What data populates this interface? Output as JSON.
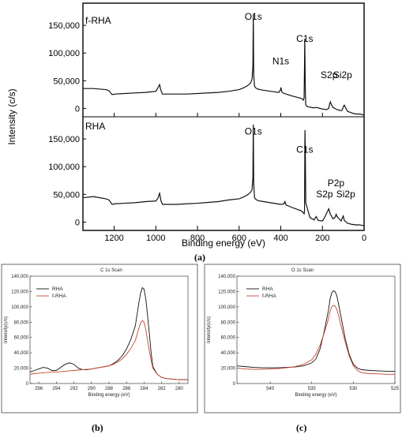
{
  "colors": {
    "rha": "#111111",
    "frha": "#c8452f",
    "axis": "#000000",
    "frame": "#444444"
  },
  "panel_a": {
    "caption": "(a)",
    "chart_data": {
      "type": "line",
      "title": "",
      "xlabel": "Binding energy (eV)",
      "ylabel": "Intensity (c/s)",
      "x_reversed": true,
      "xlim": [
        1350,
        0
      ],
      "x_ticks": [
        "1200",
        "1000",
        "800",
        "600",
        "400",
        "200",
        "0"
      ],
      "y_ticks": [
        "0",
        "50,000",
        "100,000",
        "150,000"
      ],
      "ylim": [
        -15000,
        190000
      ],
      "subplots": [
        {
          "name": "f-RHA",
          "annotations": [
            {
              "text": "O1s",
              "x": 532,
              "y": 160000
            },
            {
              "text": "N1s",
              "x": 400,
              "y": 80000
            },
            {
              "text": "C1s",
              "x": 285,
              "y": 120000
            },
            {
              "text": "S2p",
              "x": 168,
              "y": 55000
            },
            {
              "text": "Si2p",
              "x": 103,
              "y": 55000
            }
          ],
          "x": [
            1350,
            1300,
            1240,
            1225,
            1210,
            1195,
            1150,
            1100,
            1050,
            1000,
            990,
            982,
            975,
            968,
            950,
            900,
            850,
            800,
            700,
            650,
            600,
            580,
            560,
            545,
            538,
            534,
            532,
            530,
            526,
            520,
            510,
            500,
            450,
            410,
            402,
            399,
            396,
            390,
            350,
            300,
            292,
            288,
            286,
            285,
            284,
            282,
            280,
            270,
            240,
            230,
            220,
            200,
            180,
            170,
            165,
            162,
            158,
            150,
            130,
            120,
            110,
            104,
            100,
            95,
            80,
            60,
            40,
            20,
            10,
            0
          ],
          "y": [
            36000,
            36000,
            34000,
            32000,
            25000,
            26000,
            27000,
            28000,
            29000,
            31000,
            37000,
            43000,
            32000,
            26000,
            26000,
            26000,
            26000,
            27000,
            29000,
            31000,
            34000,
            37000,
            41000,
            46000,
            53000,
            75000,
            170000,
            60000,
            40000,
            37000,
            35000,
            34000,
            31000,
            29000,
            33000,
            38000,
            31000,
            28000,
            23000,
            18000,
            15000,
            19000,
            80000,
            126000,
            95000,
            30000,
            6000,
            3000,
            1000,
            2000,
            1000,
            -1000,
            -2000,
            0,
            9000,
            12000,
            8000,
            2000,
            -2000,
            -3000,
            -4000,
            -2000,
            3000,
            6000,
            -5000,
            -8000,
            -10000,
            -10000,
            -11000,
            -12000
          ]
        },
        {
          "name": "RHA",
          "annotations": [
            {
              "text": "O1s",
              "x": 532,
              "y": 158000
            },
            {
              "text": "C1s",
              "x": 285,
              "y": 125000
            },
            {
              "text": "P2p",
              "x": 135,
              "y": 65000
            },
            {
              "text": "S2p",
              "x": 190,
              "y": 45000
            },
            {
              "text": "Si2p",
              "x": 88,
              "y": 45000
            }
          ],
          "x": [
            1350,
            1300,
            1240,
            1225,
            1210,
            1195,
            1150,
            1100,
            1050,
            1000,
            990,
            982,
            975,
            968,
            950,
            900,
            850,
            800,
            700,
            650,
            600,
            580,
            560,
            545,
            538,
            534,
            532,
            530,
            526,
            520,
            510,
            500,
            450,
            400,
            385,
            380,
            375,
            350,
            300,
            292,
            288,
            286,
            285,
            284,
            282,
            280,
            260,
            240,
            230,
            220,
            200,
            190,
            180,
            170,
            165,
            162,
            158,
            150,
            140,
            134,
            130,
            120,
            110,
            104,
            100,
            95,
            80,
            60,
            40,
            20,
            10,
            0
          ],
          "y": [
            44000,
            46000,
            42000,
            40000,
            32000,
            33000,
            34000,
            35000,
            37000,
            38000,
            43000,
            52000,
            38000,
            32000,
            32000,
            32000,
            33000,
            34000,
            37000,
            40000,
            42000,
            45000,
            49000,
            54000,
            58000,
            80000,
            176000,
            70000,
            44000,
            41000,
            39000,
            38000,
            35000,
            32000,
            33000,
            37000,
            31000,
            27000,
            20000,
            17000,
            15000,
            20000,
            95000,
            166000,
            120000,
            35000,
            8000,
            4000,
            10000,
            3000,
            2000,
            8000,
            16000,
            24000,
            18000,
            14000,
            12000,
            6000,
            8000,
            14000,
            10000,
            6000,
            2000,
            8000,
            11000,
            3000,
            -2000,
            -4000,
            -5000,
            -5000,
            -6000,
            -6000
          ]
        }
      ]
    }
  },
  "panel_b": {
    "caption": "(b)",
    "chart_data": {
      "type": "line",
      "title": "C 1s Scan",
      "xlabel": "Binding energy (eV)",
      "ylabel": "Intensity(c/s)",
      "x_reversed": true,
      "xlim": [
        297,
        279
      ],
      "ylim": [
        0,
        140000
      ],
      "x_ticks": [
        "296",
        "294",
        "292",
        "290",
        "288",
        "286",
        "284",
        "282",
        "280"
      ],
      "y_ticks": [
        "0",
        "20,000",
        "40,000",
        "60,000",
        "80,000",
        "100,000",
        "120,000",
        "140,000"
      ],
      "legend": "top-left",
      "series": [
        {
          "name": "RHA",
          "x": [
            297,
            296.5,
            296,
            295.5,
            295,
            294.5,
            294,
            293.5,
            293,
            292.5,
            292,
            291.5,
            291,
            290.5,
            290,
            289.5,
            289,
            288.5,
            288,
            287.5,
            287,
            286.5,
            286,
            285.5,
            285,
            284.8,
            284.6,
            284.4,
            284.2,
            284,
            283.8,
            283.6,
            283.4,
            283.2,
            283,
            282.5,
            282,
            281.5,
            281,
            280.5,
            280,
            279.5,
            279
          ],
          "y": [
            15000,
            17000,
            19000,
            21000,
            20000,
            17000,
            17000,
            21000,
            25000,
            27000,
            25000,
            20000,
            18000,
            18000,
            19000,
            20000,
            21000,
            22000,
            23000,
            26000,
            30000,
            36000,
            45000,
            58000,
            75000,
            90000,
            105000,
            118000,
            125000,
            123000,
            110000,
            88000,
            65000,
            40000,
            22000,
            12000,
            8000,
            6500,
            6000,
            5500,
            5000,
            5000,
            5000
          ]
        },
        {
          "name": "f-RHA",
          "x": [
            297,
            296.5,
            296,
            295.5,
            295,
            294.5,
            294,
            293.5,
            293,
            292.5,
            292,
            291.5,
            291,
            290.5,
            290,
            289.5,
            289,
            288.5,
            288,
            287.5,
            287,
            286.5,
            286,
            285.5,
            285,
            284.8,
            284.6,
            284.4,
            284.2,
            284,
            283.8,
            283.6,
            283.4,
            283.2,
            283,
            282.5,
            282,
            281.5,
            281,
            280.5,
            280,
            279.5,
            279
          ],
          "y": [
            12000,
            13000,
            13500,
            14000,
            14500,
            15000,
            15000,
            15500,
            16000,
            16500,
            17000,
            17500,
            18000,
            18500,
            19000,
            20000,
            21000,
            22000,
            23000,
            25000,
            28000,
            32000,
            38000,
            46000,
            56000,
            64000,
            72000,
            79000,
            82000,
            80000,
            70000,
            56000,
            42000,
            30000,
            20000,
            12000,
            8000,
            6500,
            6000,
            5500,
            5000,
            5000,
            5000
          ]
        }
      ]
    }
  },
  "panel_c": {
    "caption": "(c)",
    "chart_data": {
      "type": "line",
      "title": "O 1s Scan",
      "xlabel": "Binding energy (eV)",
      "ylabel": "Intensity(c/s)",
      "x_reversed": true,
      "xlim": [
        544,
        525
      ],
      "ylim": [
        0,
        140000
      ],
      "x_ticks": [
        "540",
        "535",
        "530",
        "525"
      ],
      "y_ticks": [
        "0",
        "20,000",
        "40,000",
        "60,000",
        "80,000",
        "100,000",
        "120,000",
        "140,000"
      ],
      "legend": "top-left",
      "series": [
        {
          "name": "RHA",
          "x": [
            544,
            543,
            542,
            541,
            540,
            539,
            538,
            537,
            536,
            535,
            534.5,
            534,
            533.5,
            533,
            532.8,
            532.6,
            532.4,
            532.2,
            532,
            531.8,
            531.5,
            531,
            530.5,
            530,
            529.5,
            529,
            528,
            527,
            526,
            525
          ],
          "y": [
            23000,
            22000,
            21000,
            20500,
            20500,
            20500,
            21000,
            21500,
            23000,
            27000,
            32000,
            45000,
            68000,
            95000,
            110000,
            118000,
            121000,
            120000,
            115000,
            105000,
            88000,
            60000,
            38000,
            25000,
            20000,
            18000,
            17000,
            16500,
            16000,
            16000
          ]
        },
        {
          "name": "f-RHA",
          "x": [
            544,
            543,
            542,
            541,
            540,
            539,
            538,
            537,
            536,
            535,
            534.5,
            534,
            533.5,
            533,
            532.8,
            532.6,
            532.4,
            532.2,
            532,
            531.8,
            531.5,
            531,
            530.5,
            530,
            529.5,
            529,
            528,
            527,
            526,
            525
          ],
          "y": [
            20000,
            19000,
            18500,
            18500,
            19000,
            19500,
            20500,
            22000,
            25000,
            31000,
            38000,
            50000,
            66000,
            84000,
            94000,
            100000,
            102000,
            101000,
            97000,
            90000,
            76000,
            55000,
            36000,
            23000,
            17000,
            14000,
            13000,
            12500,
            12000,
            12000
          ]
        }
      ]
    }
  }
}
